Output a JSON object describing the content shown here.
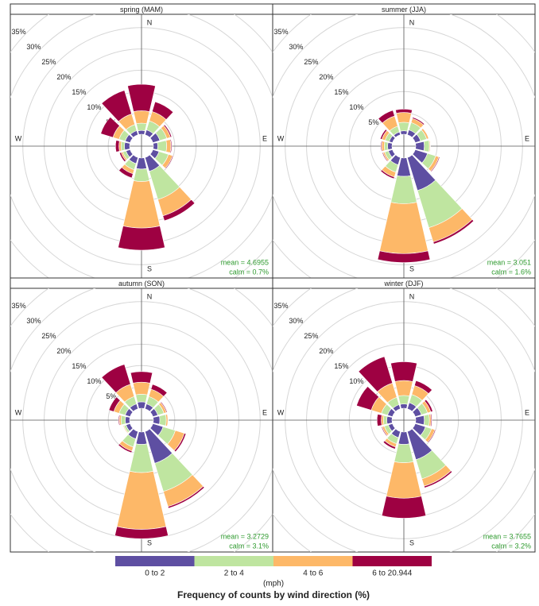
{
  "chart_data": [
    {
      "type": "windrose",
      "title": "spring (MAM)",
      "compass": [
        "N",
        "E",
        "S",
        "W"
      ],
      "x": [
        0,
        30,
        60,
        90,
        120,
        150,
        180,
        210,
        240,
        270,
        300,
        330
      ],
      "rlim": [
        0,
        35
      ],
      "rticks": [
        {
          "value": 5,
          "label": "5%"
        },
        {
          "value": 10,
          "label": "10%"
        },
        {
          "value": 15,
          "label": "15%"
        },
        {
          "value": 20,
          "label": "20%"
        },
        {
          "value": 25,
          "label": "25%"
        },
        {
          "value": 30,
          "label": "30%"
        },
        {
          "value": 35,
          "label": "35%"
        }
      ],
      "annotations": [
        "mean = 4.6955",
        "calm = 0.7%"
      ],
      "series": [
        {
          "name": "0 to 2",
          "color": "#5e4fa2",
          "values": [
            0.9,
            1.2,
            1.7,
            1.0,
            1.5,
            3.4,
            2.6,
            1.5,
            1.0,
            1.2,
            1.2,
            1.0
          ]
        },
        {
          "name": "2 to 4",
          "color": "#bfe5a0",
          "values": [
            1.7,
            2.2,
            1.7,
            2.1,
            2.3,
            6.9,
            2.9,
            1.5,
            0.8,
            0.8,
            1.5,
            1.5
          ]
        },
        {
          "name": "4 to 6",
          "color": "#fdb868",
          "values": [
            2.9,
            2.3,
            0.9,
            1.0,
            1.0,
            4.0,
            10.9,
            1.0,
            0.4,
            0.5,
            1.5,
            2.6
          ]
        },
        {
          "name": "6 to 20.944",
          "color": "#9e0142",
          "values": [
            6.2,
            2.4,
            0.3,
            0.2,
            0.2,
            1.2,
            5.2,
            1.0,
            0.4,
            0.8,
            3.0,
            5.8
          ]
        }
      ]
    },
    {
      "type": "windrose",
      "title": "summer (JJA)",
      "compass": [
        "N",
        "E",
        "S",
        "W"
      ],
      "x": [
        0,
        30,
        60,
        90,
        120,
        150,
        180,
        210,
        240,
        270,
        300,
        330
      ],
      "rlim": [
        0,
        35
      ],
      "rticks": [
        {
          "value": 5,
          "label": "5%"
        },
        {
          "value": 10,
          "label": "10%"
        },
        {
          "value": 15,
          "label": "15%"
        },
        {
          "value": 20,
          "label": "20%"
        },
        {
          "value": 25,
          "label": "25%"
        },
        {
          "value": 30,
          "label": "30%"
        },
        {
          "value": 35,
          "label": "35%"
        }
      ],
      "annotations": [
        "mean = 3.051",
        "calm = 1.6%"
      ],
      "series": [
        {
          "name": "0 to 2",
          "color": "#5e4fa2",
          "values": [
            0.8,
            1.2,
            1.3,
            2.0,
            3.0,
            8.1,
            4.3,
            1.8,
            1.0,
            1.0,
            0.8,
            0.7
          ]
        },
        {
          "name": "2 to 4",
          "color": "#bfe5a0",
          "values": [
            2.0,
            1.8,
            1.5,
            1.2,
            2.0,
            9.1,
            6.4,
            1.8,
            0.9,
            0.8,
            1.0,
            1.4
          ]
        },
        {
          "name": "4 to 6",
          "color": "#fdb868",
          "values": [
            2.3,
            1.0,
            0.5,
            0.2,
            0.8,
            3.5,
            11.7,
            1.2,
            0.4,
            0.6,
            0.8,
            2.5
          ]
        },
        {
          "name": "6 to 20.944",
          "color": "#9e0142",
          "values": [
            0.8,
            0.3,
            0.1,
            0.05,
            0.2,
            0.5,
            2.1,
            0.4,
            0.2,
            0.2,
            0.4,
            1.4
          ]
        }
      ]
    },
    {
      "type": "windrose",
      "title": "autumn (SON)",
      "compass": [
        "N",
        "E",
        "S",
        "W"
      ],
      "x": [
        0,
        30,
        60,
        90,
        120,
        150,
        180,
        210,
        240,
        270,
        300,
        330
      ],
      "rlim": [
        0,
        35
      ],
      "rticks": [
        {
          "value": 5,
          "label": "5%"
        },
        {
          "value": 10,
          "label": "10%"
        },
        {
          "value": 15,
          "label": "15%"
        },
        {
          "value": 20,
          "label": "20%"
        },
        {
          "value": 25,
          "label": "25%"
        },
        {
          "value": 30,
          "label": "30%"
        },
        {
          "value": 35,
          "label": "35%"
        }
      ],
      "annotations": [
        "mean = 3.2729",
        "calm = 3.1%"
      ],
      "series": [
        {
          "name": "0 to 2",
          "color": "#5e4fa2",
          "values": [
            1.5,
            1.2,
            1.2,
            1.5,
            2.5,
            7.8,
            2.9,
            1.8,
            1.0,
            1.0,
            1.2,
            1.2
          ]
        },
        {
          "name": "2 to 4",
          "color": "#bfe5a0",
          "values": [
            1.8,
            1.8,
            1.5,
            1.5,
            3.0,
            6.9,
            6.6,
            2.0,
            0.5,
            1.0,
            1.5,
            1.8
          ]
        },
        {
          "name": "4 to 6",
          "color": "#fdb868",
          "values": [
            2.8,
            1.8,
            0.6,
            0.4,
            2.2,
            3.7,
            13.3,
            1.0,
            0.2,
            0.4,
            1.3,
            3.0
          ]
        },
        {
          "name": "6 to 20.944",
          "color": "#9e0142",
          "values": [
            2.5,
            1.2,
            0.2,
            0.1,
            0.4,
            0.4,
            2.2,
            0.4,
            0.1,
            0.2,
            1.2,
            4.9
          ]
        }
      ]
    },
    {
      "type": "windrose",
      "title": "winter (DJF)",
      "compass": [
        "N",
        "E",
        "S",
        "W"
      ],
      "x": [
        0,
        30,
        60,
        90,
        120,
        150,
        180,
        210,
        240,
        270,
        300,
        330
      ],
      "rlim": [
        0,
        35
      ],
      "rticks": [
        {
          "value": 5,
          "label": "5%"
        },
        {
          "value": 10,
          "label": "10%"
        },
        {
          "value": 15,
          "label": "15%"
        },
        {
          "value": 20,
          "label": "20%"
        },
        {
          "value": 25,
          "label": "25%"
        },
        {
          "value": 30,
          "label": "30%"
        },
        {
          "value": 35,
          "label": "35%"
        }
      ],
      "annotations": [
        "mean = 3.7655",
        "calm = 3.2%"
      ],
      "series": [
        {
          "name": "0 to 2",
          "color": "#5e4fa2",
          "values": [
            1.0,
            1.5,
            1.5,
            2.0,
            2.5,
            6.9,
            2.9,
            1.5,
            1.0,
            1.2,
            1.2,
            1.0
          ]
        },
        {
          "name": "2 to 4",
          "color": "#bfe5a0",
          "values": [
            2.0,
            2.0,
            1.5,
            1.2,
            1.5,
            4.7,
            4.3,
            1.5,
            1.0,
            0.8,
            1.5,
            1.8
          ]
        },
        {
          "name": "4 to 6",
          "color": "#fdb868",
          "values": [
            3.5,
            2.2,
            0.8,
            0.4,
            0.8,
            1.8,
            8.3,
            0.8,
            0.5,
            0.5,
            2.5,
            3.5
          ]
        },
        {
          "name": "6 to 20.944",
          "color": "#9e0142",
          "values": [
            4.4,
            1.2,
            0.5,
            0.2,
            0.2,
            0.4,
            4.7,
            0.5,
            0.2,
            1.0,
            3.6,
            6.5
          ]
        }
      ]
    }
  ],
  "legend": {
    "unit": "(mph)",
    "title": "Frequency of counts by wind direction (%)"
  }
}
